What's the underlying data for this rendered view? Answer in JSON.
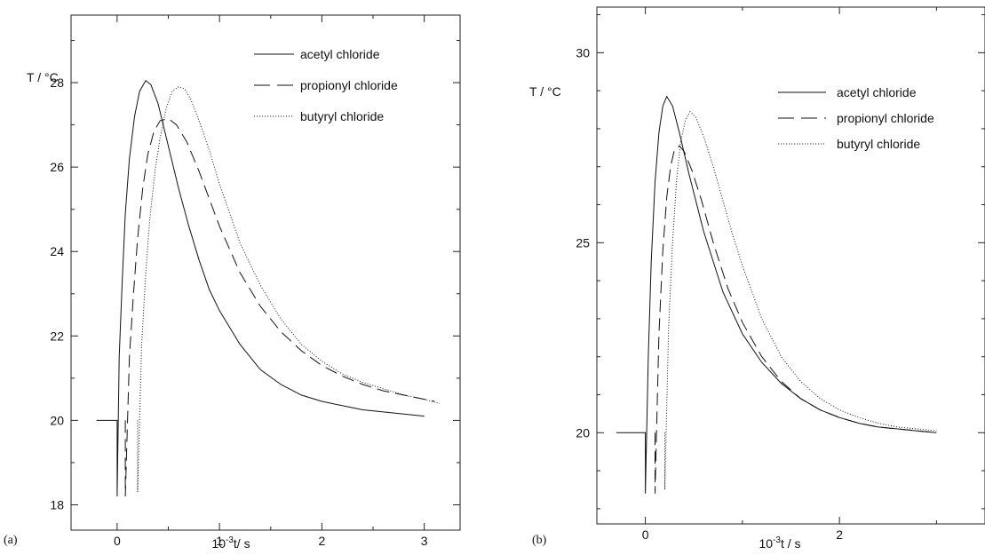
{
  "chart_data": [
    {
      "panel": "(a)",
      "type": "line",
      "xlabel_prefix": "10",
      "xlabel_exp": "-3",
      "xlabel_suffix": "t/ s",
      "ylabel": "T / °C",
      "xlim": [
        -0.45,
        3.35
      ],
      "ylim": [
        17.4,
        29.6
      ],
      "xticks": [
        0,
        1,
        2,
        3
      ],
      "yticks": [
        18,
        20,
        22,
        24,
        26,
        28
      ],
      "legend_position": "top-right",
      "series": [
        {
          "name": "acetyl chloride",
          "style": "solid",
          "x": [
            -0.2,
            0.0,
            0.0,
            0.02,
            0.05,
            0.08,
            0.12,
            0.17,
            0.22,
            0.28,
            0.33,
            0.4,
            0.5,
            0.6,
            0.7,
            0.8,
            0.9,
            1.0,
            1.2,
            1.4,
            1.6,
            1.8,
            2.0,
            2.2,
            2.4,
            2.6,
            2.8,
            3.0
          ],
          "y": [
            20.0,
            20.0,
            18.2,
            21.5,
            23.3,
            24.9,
            26.2,
            27.2,
            27.8,
            28.05,
            27.95,
            27.5,
            26.5,
            25.5,
            24.6,
            23.8,
            23.1,
            22.6,
            21.8,
            21.2,
            20.85,
            20.6,
            20.45,
            20.35,
            20.25,
            20.2,
            20.15,
            20.1
          ]
        },
        {
          "name": "propionyl chloride",
          "style": "dashed",
          "x": [
            0.08,
            0.08,
            0.12,
            0.16,
            0.2,
            0.25,
            0.3,
            0.36,
            0.42,
            0.5,
            0.58,
            0.68,
            0.8,
            1.0,
            1.2,
            1.4,
            1.6,
            1.8,
            2.0,
            2.2,
            2.4,
            2.6,
            2.8,
            3.0,
            3.1
          ],
          "y": [
            20.0,
            18.2,
            21.5,
            23.0,
            24.3,
            25.5,
            26.3,
            26.85,
            27.1,
            27.15,
            27.0,
            26.6,
            25.9,
            24.6,
            23.5,
            22.7,
            22.1,
            21.65,
            21.3,
            21.05,
            20.85,
            20.7,
            20.6,
            20.5,
            20.45
          ]
        },
        {
          "name": "butyryl chloride",
          "style": "dotted",
          "x": [
            0.2,
            0.2,
            0.24,
            0.28,
            0.32,
            0.37,
            0.42,
            0.48,
            0.54,
            0.6,
            0.66,
            0.72,
            0.8,
            0.9,
            1.0,
            1.2,
            1.4,
            1.6,
            1.8,
            2.0,
            2.2,
            2.4,
            2.6,
            2.8,
            3.0,
            3.15
          ],
          "y": [
            20.0,
            18.3,
            21.8,
            23.5,
            24.8,
            25.9,
            26.7,
            27.4,
            27.8,
            27.9,
            27.85,
            27.6,
            27.1,
            26.4,
            25.6,
            24.2,
            23.2,
            22.4,
            21.8,
            21.4,
            21.1,
            20.9,
            20.75,
            20.6,
            20.5,
            20.4
          ]
        }
      ]
    },
    {
      "panel": "(b)",
      "type": "line",
      "xlabel_prefix": "10",
      "xlabel_exp": "-3",
      "xlabel_suffix": "t / s",
      "ylabel": "T / °C",
      "xlim": [
        -0.5,
        3.5
      ],
      "ylim": [
        17.6,
        31.2
      ],
      "xticks": [
        0,
        2
      ],
      "yticks": [
        20,
        25,
        30
      ],
      "legend_position": "top-right",
      "series": [
        {
          "name": "acetyl chloride",
          "style": "solid",
          "x": [
            -0.3,
            0.0,
            0.0,
            0.03,
            0.06,
            0.1,
            0.14,
            0.18,
            0.22,
            0.28,
            0.35,
            0.45,
            0.6,
            0.8,
            1.0,
            1.2,
            1.4,
            1.6,
            1.8,
            2.0,
            2.2,
            2.4,
            2.6,
            2.8,
            3.0
          ],
          "y": [
            20.0,
            20.0,
            18.4,
            22.0,
            24.5,
            26.6,
            27.9,
            28.6,
            28.85,
            28.6,
            27.9,
            26.8,
            25.3,
            23.7,
            22.6,
            21.85,
            21.3,
            20.9,
            20.6,
            20.4,
            20.25,
            20.15,
            20.1,
            20.05,
            20.0
          ]
        },
        {
          "name": "propionyl chloride",
          "style": "dashed",
          "x": [
            0.1,
            0.1,
            0.14,
            0.18,
            0.22,
            0.26,
            0.3,
            0.35,
            0.4,
            0.48,
            0.58,
            0.7,
            0.85,
            1.0,
            1.2,
            1.4,
            1.6,
            1.8,
            2.0,
            2.2,
            2.4,
            2.6,
            2.8,
            3.0
          ],
          "y": [
            20.0,
            18.4,
            22.6,
            24.8,
            26.2,
            27.0,
            27.45,
            27.55,
            27.4,
            26.9,
            26.1,
            25.0,
            23.8,
            22.9,
            22.0,
            21.35,
            20.9,
            20.6,
            20.4,
            20.25,
            20.15,
            20.1,
            20.05,
            20.0
          ]
        },
        {
          "name": "butyryl chloride",
          "style": "dotted",
          "x": [
            0.2,
            0.2,
            0.24,
            0.28,
            0.32,
            0.36,
            0.41,
            0.46,
            0.52,
            0.6,
            0.7,
            0.8,
            0.9,
            1.0,
            1.2,
            1.4,
            1.6,
            1.8,
            2.0,
            2.2,
            2.4,
            2.6,
            2.8,
            3.0
          ],
          "y": [
            20.0,
            18.5,
            22.8,
            25.0,
            26.6,
            27.6,
            28.2,
            28.45,
            28.3,
            27.8,
            27.0,
            26.1,
            25.2,
            24.4,
            23.0,
            22.0,
            21.35,
            20.9,
            20.6,
            20.4,
            20.25,
            20.15,
            20.1,
            20.05
          ]
        }
      ]
    }
  ]
}
